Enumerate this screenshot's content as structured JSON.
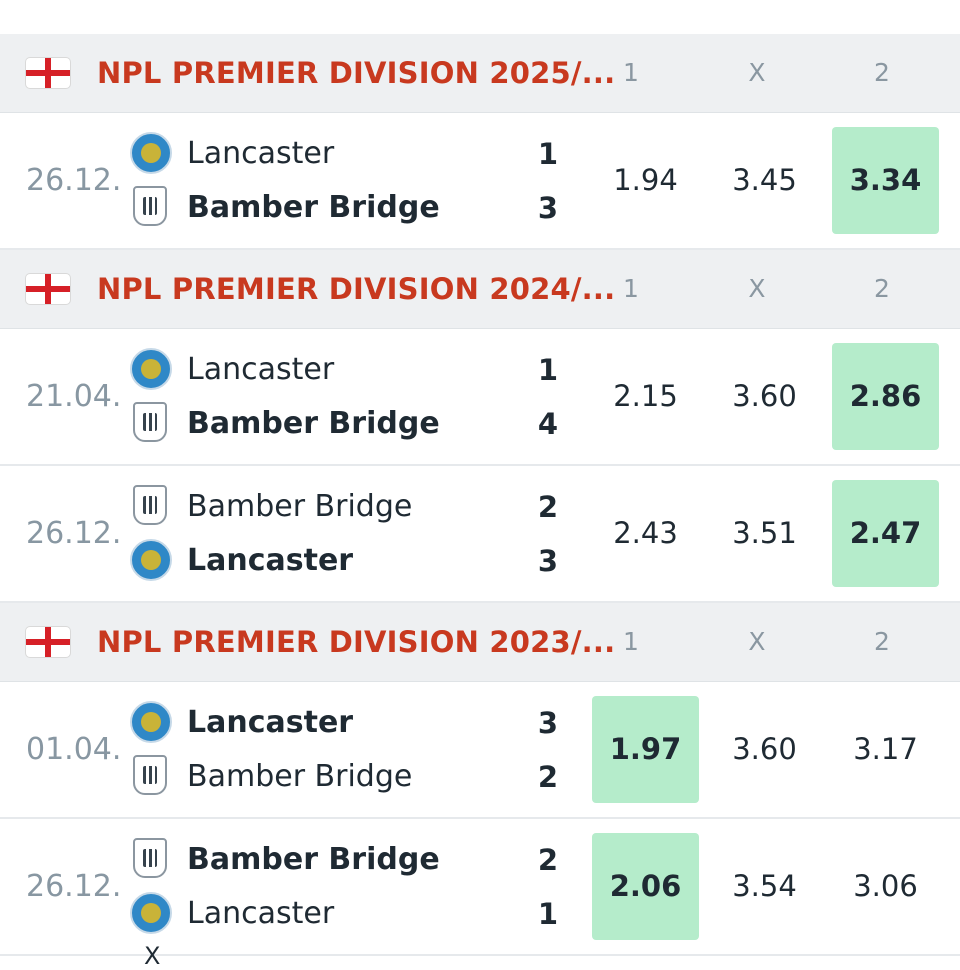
{
  "column_labels": {
    "home": "1",
    "draw": "X",
    "away": "2"
  },
  "sections": [
    {
      "league": "NPL PREMIER DIVISION 2025/...",
      "matches": [
        {
          "date": "26.12.",
          "team1": {
            "name": "Lancaster",
            "crest": "lancaster-crest",
            "score": "1",
            "winner": false
          },
          "team2": {
            "name": "Bamber Bridge",
            "crest": "bamber-bridge-crest",
            "score": "3",
            "winner": true
          },
          "odds": {
            "home": "1.94",
            "draw": "3.45",
            "away": "3.34"
          },
          "highlight": "away"
        }
      ]
    },
    {
      "league": "NPL PREMIER DIVISION 2024/...",
      "matches": [
        {
          "date": "21.04.",
          "team1": {
            "name": "Lancaster",
            "crest": "lancaster-crest",
            "score": "1",
            "winner": false
          },
          "team2": {
            "name": "Bamber Bridge",
            "crest": "bamber-bridge-crest",
            "score": "4",
            "winner": true
          },
          "odds": {
            "home": "2.15",
            "draw": "3.60",
            "away": "2.86"
          },
          "highlight": "away"
        },
        {
          "date": "26.12.",
          "team1": {
            "name": "Bamber Bridge",
            "crest": "bamber-bridge-crest",
            "score": "2",
            "winner": false
          },
          "team2": {
            "name": "Lancaster",
            "crest": "lancaster-crest",
            "score": "3",
            "winner": true
          },
          "odds": {
            "home": "2.43",
            "draw": "3.51",
            "away": "2.47"
          },
          "highlight": "away"
        }
      ]
    },
    {
      "league": "NPL PREMIER DIVISION 2023/...",
      "matches": [
        {
          "date": "01.04.",
          "team1": {
            "name": "Lancaster",
            "crest": "lancaster-crest",
            "score": "3",
            "winner": true
          },
          "team2": {
            "name": "Bamber Bridge",
            "crest": "bamber-bridge-crest",
            "score": "2",
            "winner": false
          },
          "odds": {
            "home": "1.97",
            "draw": "3.60",
            "away": "3.17"
          },
          "highlight": "home"
        },
        {
          "date": "26.12.",
          "team1": {
            "name": "Bamber Bridge",
            "crest": "bamber-bridge-crest",
            "score": "2",
            "winner": true
          },
          "team2": {
            "name": "Lancaster",
            "crest": "lancaster-crest",
            "score": "1",
            "winner": false
          },
          "odds": {
            "home": "2.06",
            "draw": "3.54",
            "away": "3.06"
          },
          "highlight": "home"
        }
      ]
    }
  ],
  "bottom_fragment": "X",
  "colors": {
    "league_text": "#c8391f",
    "highlight": "#b5eccb",
    "header_bg": "#eef0f2",
    "flag_red": "#d62027"
  }
}
